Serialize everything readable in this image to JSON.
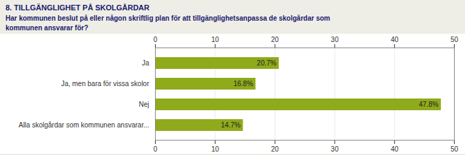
{
  "chart_data": {
    "type": "bar",
    "orientation": "horizontal",
    "title": "8. TILLGÄNGLIGHET PÅ SKOLGÅRDAR",
    "subtitle": "Har kommunen beslut på eller någon skriftlig plan för att tillgänglighetsanpassa de skolgårdar som\nkommunen ansvarar för?",
    "categories": [
      "Ja",
      "Ja, men bara för vissa skolor",
      "Nej",
      "Alla skolgårdar som kommunen ansvarar..."
    ],
    "values": [
      20.7,
      16.8,
      47.8,
      14.7
    ],
    "value_labels": [
      "20.7%",
      "16.8%",
      "47.8%",
      "14.7%"
    ],
    "data_labels": true,
    "color": "#8faa1b",
    "xlim": [
      0,
      50
    ],
    "xticks": [
      0,
      10,
      20,
      30,
      40,
      50
    ],
    "grid": true
  }
}
